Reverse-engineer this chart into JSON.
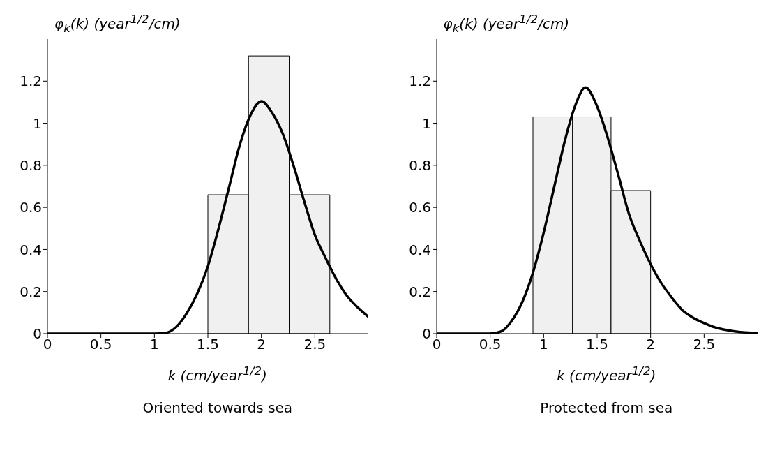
{
  "chart_data": [
    {
      "type": "histogram",
      "title": "Oriented towards sea",
      "xlabel": "k (cm/year$^{1/2}$)",
      "ylabel": "φ$_{k}$(k) (year$^{1/2}$/cm)",
      "xlim": [
        0,
        3
      ],
      "xticks": [
        0,
        0.5,
        1,
        1.5,
        2,
        2.5
      ],
      "ylim": [
        0,
        1.4
      ],
      "yticks": [
        0,
        0.2,
        0.4,
        0.6,
        0.8,
        1,
        1.2
      ],
      "grid": false,
      "series": [
        {
          "color": "#f0f0f0",
          "bins": [
            1.5,
            1.88,
            2.26,
            2.64
          ],
          "values": [
            0.66,
            1.32,
            0.66
          ]
        },
        {
          "type": "line",
          "color": "#000000",
          "x": [
            0,
            0.5,
            1,
            1.1,
            1.2,
            1.3,
            1.4,
            1.5,
            1.6,
            1.7,
            1.8,
            1.9,
            2,
            2.1,
            2.2,
            2.3,
            2.4,
            2.5,
            2.6,
            2.7,
            2.8,
            2.9,
            3
          ],
          "values": [
            0,
            0,
            0,
            0.003,
            0.03,
            0.095,
            0.19,
            0.32,
            0.5,
            0.7,
            0.9,
            1.04,
            1.105,
            1.05,
            0.95,
            0.8,
            0.63,
            0.47,
            0.36,
            0.26,
            0.18,
            0.125,
            0.08
          ]
        }
      ]
    },
    {
      "type": "histogram",
      "title": "Protected from sea",
      "xlabel": "k (cm/year$^{1/2}$)",
      "ylabel": "φ$_{k}$(k) (year$^{1/2}$/cm)",
      "xlim": [
        0,
        3
      ],
      "xticks": [
        0,
        0.5,
        1,
        1.5,
        2,
        2.5
      ],
      "ylim": [
        0,
        1.4
      ],
      "yticks": [
        0,
        0.2,
        0.4,
        0.6,
        0.8,
        1,
        1.2
      ],
      "grid": false,
      "series": [
        {
          "color": "#f0f0f0",
          "bins": [
            0.9,
            1.27,
            1.63,
            2
          ],
          "values": [
            1.03,
            1.03,
            0.68
          ]
        },
        {
          "type": "line",
          "color": "#000000",
          "x": [
            0,
            0.5,
            0.6,
            0.7,
            0.8,
            0.9,
            1,
            1.1,
            1.2,
            1.3,
            1.39,
            1.5,
            1.6,
            1.7,
            1.8,
            1.9,
            2,
            2.1,
            2.2,
            2.3,
            2.4,
            2.5,
            2.6,
            2.8,
            3
          ],
          "values": [
            0,
            0,
            0.01,
            0.06,
            0.15,
            0.29,
            0.48,
            0.7,
            0.92,
            1.09,
            1.17,
            1.08,
            0.93,
            0.75,
            0.565,
            0.44,
            0.33,
            0.24,
            0.17,
            0.11,
            0.075,
            0.05,
            0.03,
            0.01,
            0.003
          ]
        }
      ]
    }
  ]
}
